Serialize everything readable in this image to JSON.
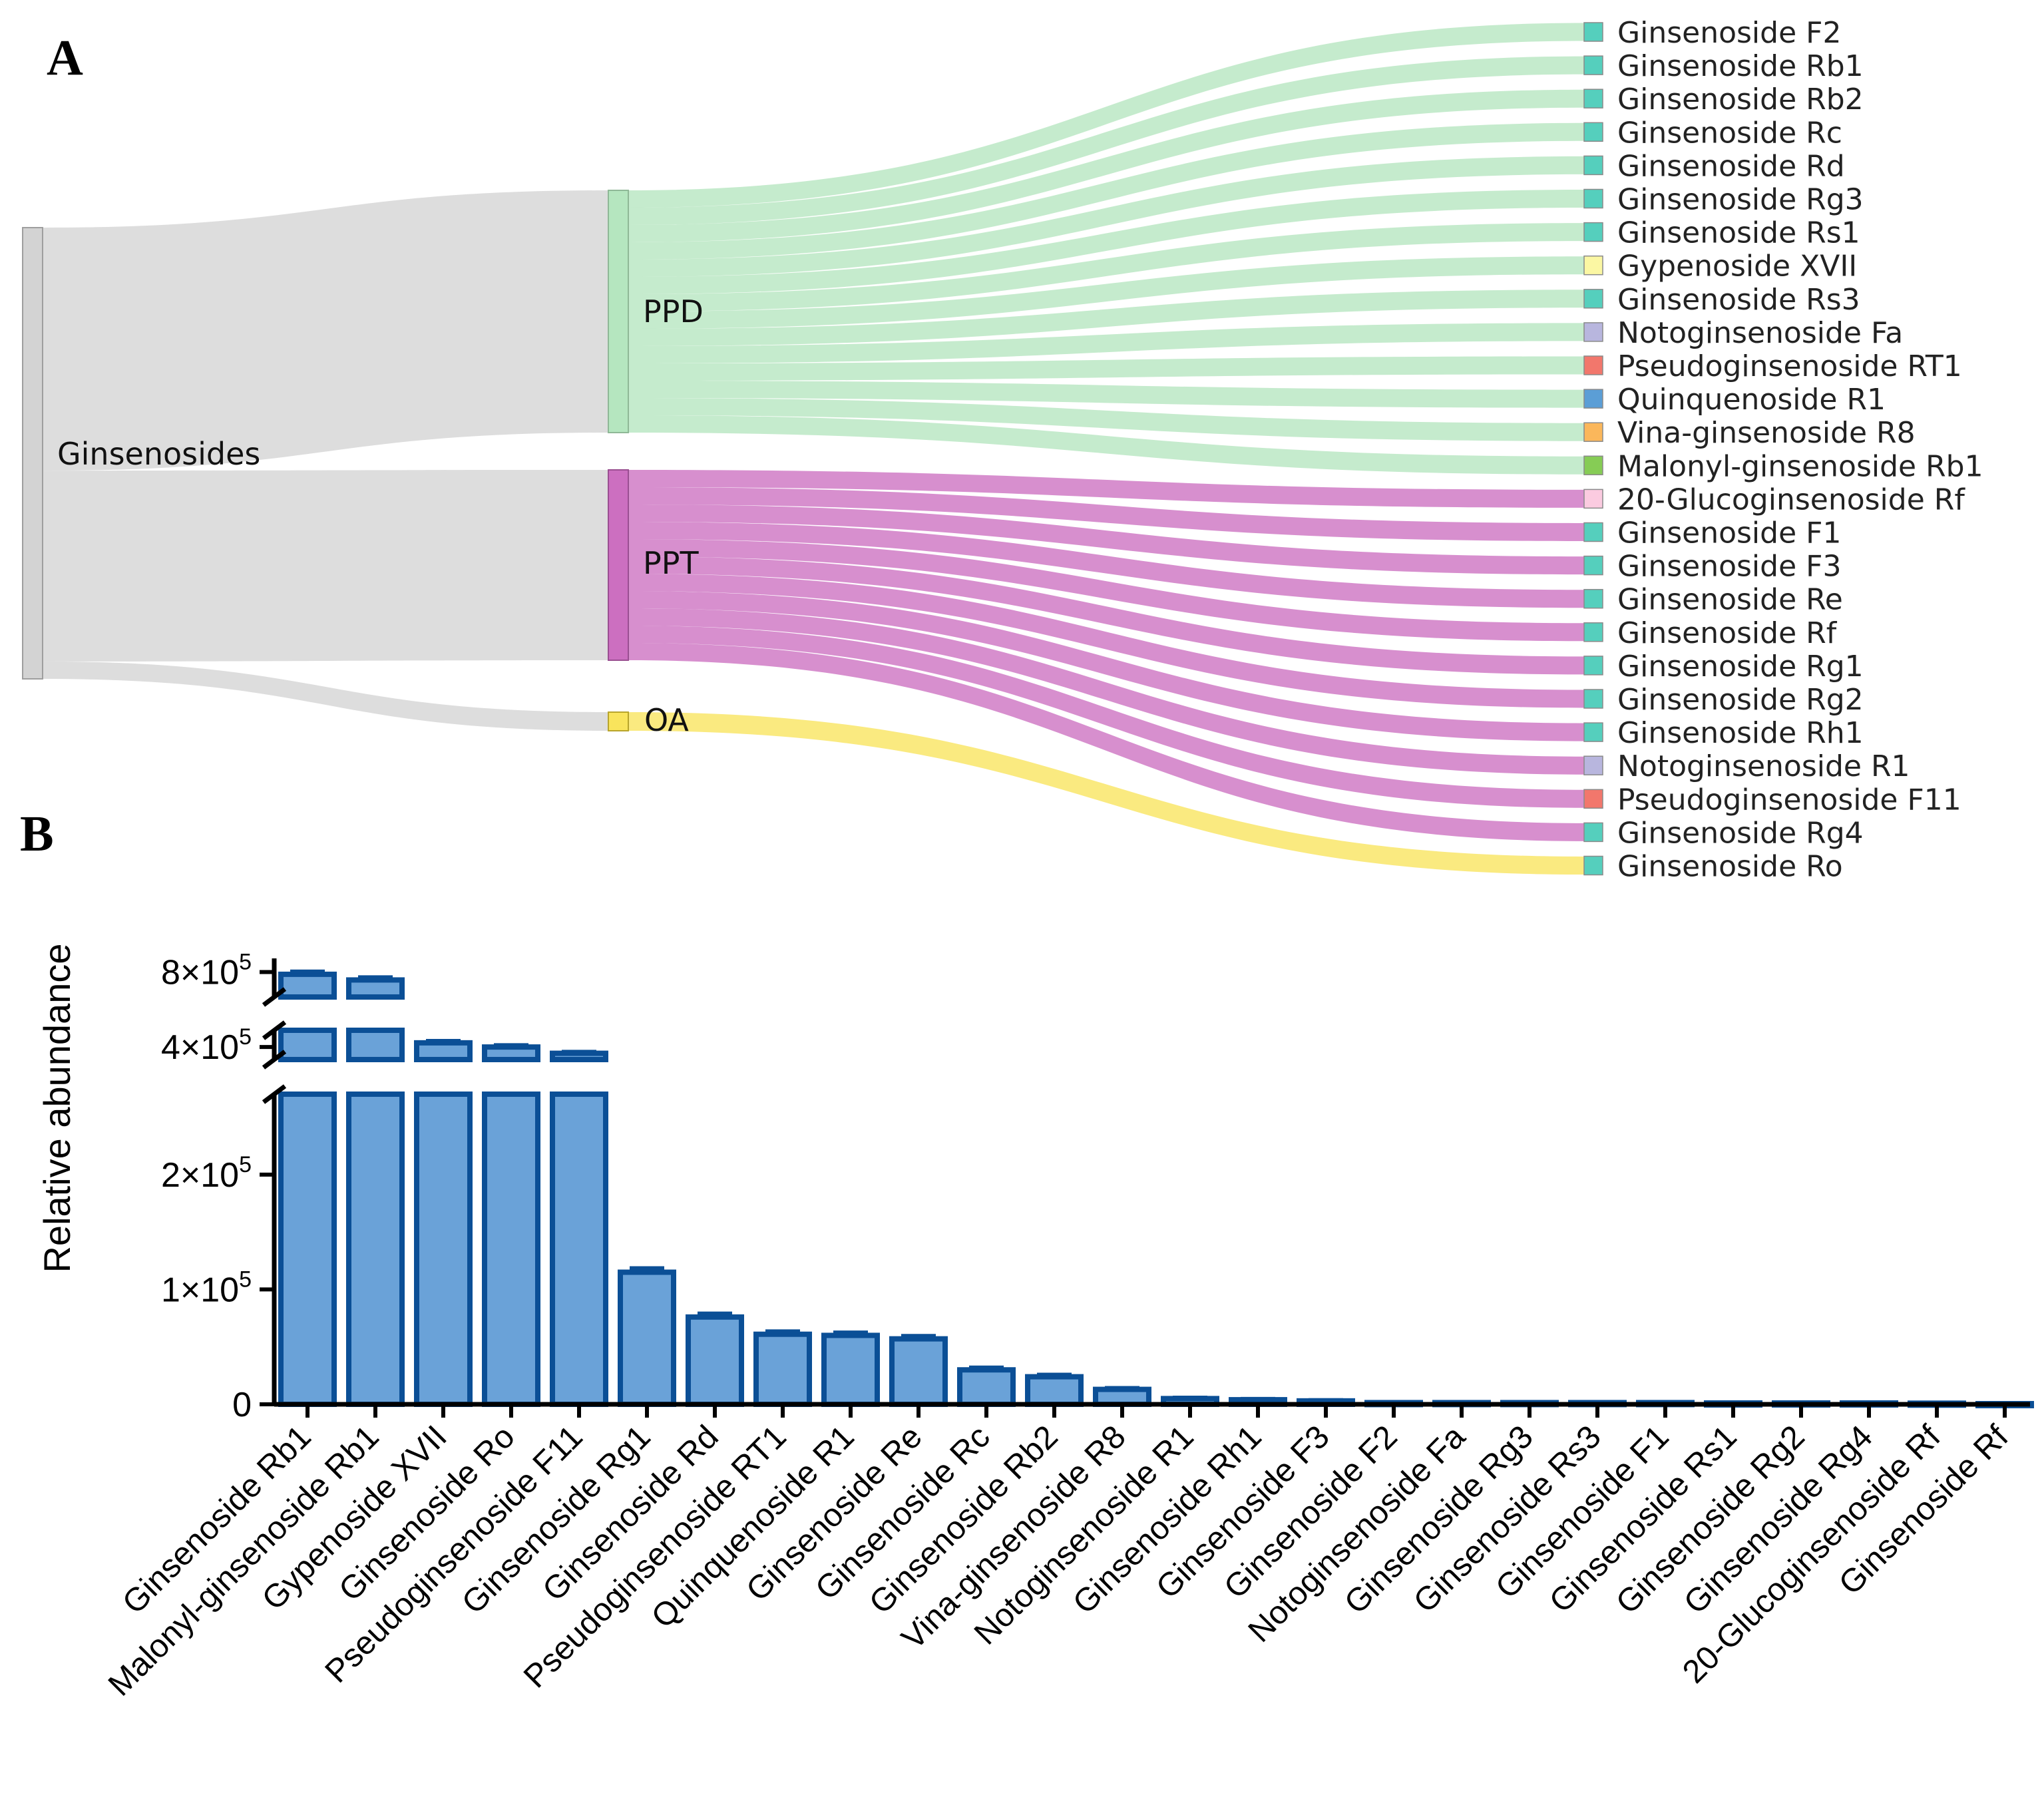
{
  "panels": {
    "a": {
      "label": "A"
    },
    "b": {
      "label": "B"
    }
  },
  "colors": {
    "root": "#d3d3d3",
    "ppd": "#b5e6bf",
    "ppt": "#cc6fc0",
    "oa": "#f9e45c",
    "bar_fill": "#6aa2d8",
    "bar_edge": "#0b4f96",
    "leaf": {
      "ginsenoside": "#55cfbd",
      "gypenoside": "#fbf7a3",
      "notoginsenoside": "#b8b6de",
      "pseudoginsenoside": "#f2776c",
      "quinquenoside": "#5b9ed6",
      "vina": "#fbb75b",
      "malonyl": "#86cc55",
      "glucoginsenoside": "#fbcbe0"
    }
  },
  "sankey": {
    "root": {
      "label": "Ginsenosides"
    },
    "groups": [
      {
        "id": "ppd",
        "label": "PPD",
        "weight": 14
      },
      {
        "id": "ppt",
        "label": "PPT",
        "weight": 11
      },
      {
        "id": "oa",
        "label": "OA",
        "weight": 1
      }
    ],
    "leaves": [
      {
        "label": "Ginsenoside F2",
        "group": "ppd",
        "color_key": "ginsenoside"
      },
      {
        "label": "Ginsenoside Rb1",
        "group": "ppd",
        "color_key": "ginsenoside"
      },
      {
        "label": "Ginsenoside Rb2",
        "group": "ppd",
        "color_key": "ginsenoside"
      },
      {
        "label": "Ginsenoside Rc",
        "group": "ppd",
        "color_key": "ginsenoside"
      },
      {
        "label": "Ginsenoside Rd",
        "group": "ppd",
        "color_key": "ginsenoside"
      },
      {
        "label": "Ginsenoside Rg3",
        "group": "ppd",
        "color_key": "ginsenoside"
      },
      {
        "label": "Ginsenoside Rs1",
        "group": "ppd",
        "color_key": "ginsenoside"
      },
      {
        "label": "Gypenoside XVII",
        "group": "ppd",
        "color_key": "gypenoside"
      },
      {
        "label": "Ginsenoside Rs3",
        "group": "ppd",
        "color_key": "ginsenoside"
      },
      {
        "label": "Notoginsenoside Fa",
        "group": "ppd",
        "color_key": "notoginsenoside"
      },
      {
        "label": "Pseudoginsenoside RT1",
        "group": "ppd",
        "color_key": "pseudoginsenoside"
      },
      {
        "label": "Quinquenoside R1",
        "group": "ppd",
        "color_key": "quinquenoside"
      },
      {
        "label": "Vina-ginsenoside R8",
        "group": "ppd",
        "color_key": "vina"
      },
      {
        "label": "Malonyl-ginsenoside Rb1",
        "group": "ppd",
        "color_key": "malonyl"
      },
      {
        "label": "20-Glucoginsenoside Rf",
        "group": "ppt",
        "color_key": "glucoginsenoside"
      },
      {
        "label": "Ginsenoside F1",
        "group": "ppt",
        "color_key": "ginsenoside"
      },
      {
        "label": "Ginsenoside F3",
        "group": "ppt",
        "color_key": "ginsenoside"
      },
      {
        "label": "Ginsenoside Re",
        "group": "ppt",
        "color_key": "ginsenoside"
      },
      {
        "label": "Ginsenoside Rf",
        "group": "ppt",
        "color_key": "ginsenoside"
      },
      {
        "label": "Ginsenoside Rg1",
        "group": "ppt",
        "color_key": "ginsenoside"
      },
      {
        "label": "Ginsenoside Rg2",
        "group": "ppt",
        "color_key": "ginsenoside"
      },
      {
        "label": "Ginsenoside Rh1",
        "group": "ppt",
        "color_key": "ginsenoside"
      },
      {
        "label": "Notoginsenoside R1",
        "group": "ppt",
        "color_key": "notoginsenoside"
      },
      {
        "label": "Pseudoginsenoside F11",
        "group": "ppt",
        "color_key": "pseudoginsenoside"
      },
      {
        "label": "Ginsenoside Rg4",
        "group": "ppt",
        "color_key": "ginsenoside"
      },
      {
        "label": "Ginsenoside Ro",
        "group": "oa",
        "color_key": "ginsenoside"
      }
    ]
  },
  "chart_data": {
    "type": "bar",
    "title": "",
    "xlabel": "",
    "ylabel": "Relative  abundance",
    "y_axis_breaks": [
      [
        270000,
        340000
      ],
      [
        480000,
        690000
      ]
    ],
    "ylim": [
      0,
      860000
    ],
    "yticks": [
      {
        "value": 0,
        "mantissa": "0",
        "exponent": ""
      },
      {
        "value": 100000,
        "mantissa": "1×10",
        "exponent": "5"
      },
      {
        "value": 200000,
        "mantissa": "2×10",
        "exponent": "5"
      },
      {
        "value": 400000,
        "mantissa": "4×10",
        "exponent": "5"
      },
      {
        "value": 800000,
        "mantissa": "8×10",
        "exponent": "5"
      }
    ],
    "categories": [
      "Ginsenoside Rb1",
      "Malonyl-ginsenoside Rb1",
      "Gypenoside XVII",
      "Ginsenoside Ro",
      "Pseudoginsenoside F11",
      "Ginsenoside Rg1",
      "Ginsenoside Rd",
      "Pseudoginsenoside RT1",
      "Quinquenoside R1",
      "Ginsenoside Re",
      "Ginsenoside Rc",
      "Ginsenoside Rb2",
      "Vina-ginsenoside R8",
      "Notoginsenoside R1",
      "Ginsenoside Rh1",
      "Ginsenoside F3",
      "Ginsenoside F2",
      "Notoginsenoside Fa",
      "Ginsenoside Rg3",
      "Ginsenoside Rs3",
      "Ginsenoside F1",
      "Ginsenoside Rs1",
      "Ginsenoside Rg2",
      "Ginsenoside Rg4",
      "20-Glucoginsenoside Rf",
      "Ginsenoside Rf"
    ],
    "values": [
      790000,
      765000,
      420000,
      400000,
      370000,
      115000,
      76000,
      61000,
      60000,
      57000,
      30000,
      24000,
      13000,
      5000,
      4000,
      3000,
      1500,
      1500,
      1500,
      1500,
      1500,
      1200,
      1200,
      1200,
      1000,
      600
    ],
    "errors": [
      12000,
      12000,
      9000,
      9000,
      7000,
      3500,
      3000,
      2500,
      2500,
      2500,
      2000,
      1800,
      1200,
      800,
      700,
      600,
      400,
      400,
      400,
      400,
      400,
      300,
      300,
      300,
      300,
      200
    ]
  }
}
